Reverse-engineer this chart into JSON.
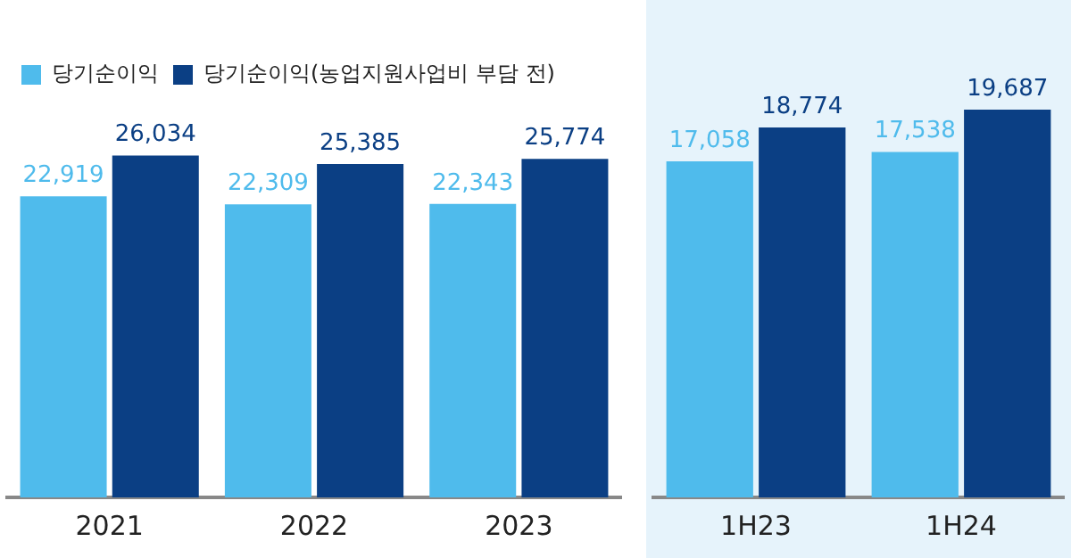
{
  "chart_data": [
    {
      "type": "bar",
      "categories": [
        "2021",
        "2022",
        "2023"
      ],
      "series": [
        {
          "name": "당기순이익",
          "color": "#4fbbec",
          "values": [
            22919,
            22309,
            22343
          ],
          "value_labels": [
            "22,919",
            "22,309",
            "22,343"
          ]
        },
        {
          "name": "당기순이익(농업지원사업비 부담 전)",
          "color": "#0b3f84",
          "values": [
            26034,
            25385,
            25774
          ],
          "value_labels": [
            "26,034",
            "25,385",
            "25,774"
          ]
        }
      ],
      "legend": "top left",
      "grid": false,
      "tick_labels": "x"
    },
    {
      "type": "bar",
      "categories": [
        "1H23",
        "1H24"
      ],
      "series": [
        {
          "color": "#4fbbec",
          "values": [
            17058,
            17538
          ],
          "value_labels": [
            "17,058",
            "17,538"
          ]
        },
        {
          "color": "#0b3f84",
          "values": [
            18774,
            19687
          ],
          "value_labels": [
            "18,774",
            "19,687"
          ]
        }
      ],
      "legend": false,
      "grid": false,
      "tick_labels": "x"
    }
  ]
}
